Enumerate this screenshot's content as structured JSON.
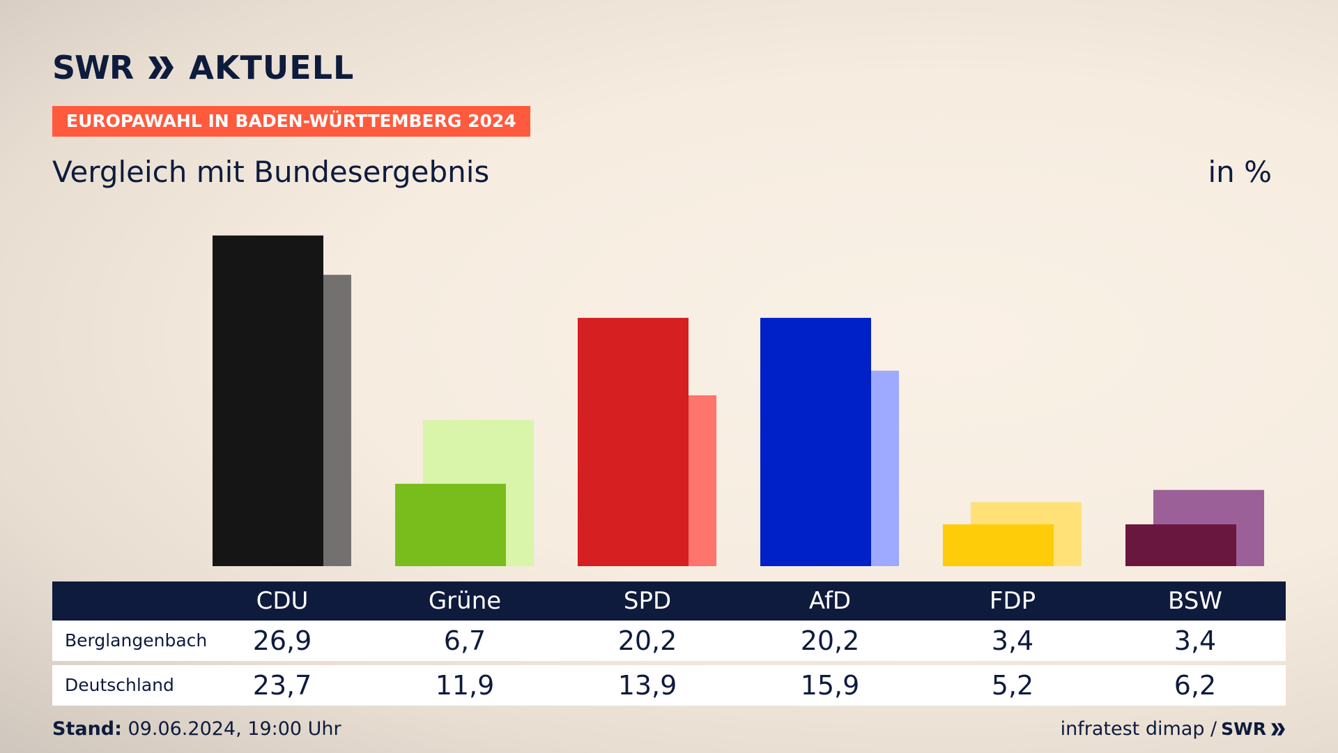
{
  "brand": {
    "name": "SWR",
    "product": "AKTUELL"
  },
  "badge": "EUROPAWAHL IN BADEN-WÜRTTEMBERG 2024",
  "subtitle": "Vergleich mit Bundesergebnis",
  "unit": "in %",
  "chart_data": {
    "type": "bar",
    "categories": [
      "CDU",
      "Grüne",
      "SPD",
      "AfD",
      "FDP",
      "BSW"
    ],
    "series": [
      {
        "name": "Berglangenbach",
        "values": [
          26.9,
          6.7,
          20.2,
          20.2,
          3.4,
          3.4
        ]
      },
      {
        "name": "Deutschland",
        "values": [
          23.7,
          11.9,
          13.9,
          15.9,
          5.2,
          6.2
        ]
      }
    ],
    "display_values": {
      "Berglangenbach": [
        "26,9",
        "6,7",
        "20,2",
        "20,2",
        "3,4",
        "3,4"
      ],
      "Deutschland": [
        "23,7",
        "11,9",
        "13,9",
        "15,9",
        "5,2",
        "6,2"
      ]
    },
    "colors": {
      "primary": [
        "#151515",
        "#79bd1c",
        "#d51f20",
        "#0020c8",
        "#ffcc0a",
        "#6a173f"
      ],
      "secondary": [
        "#737170",
        "#d8f5aa",
        "#ff746c",
        "#9eaaff",
        "#ffe177",
        "#9b6098"
      ]
    },
    "ylim": [
      0,
      27
    ],
    "grid": false,
    "legend": "table-below"
  },
  "footer": {
    "stand_label": "Stand:",
    "stand_value": "09.06.2024, 19:00 Uhr",
    "source": "infratest dimap /",
    "source_brand": "SWR"
  }
}
